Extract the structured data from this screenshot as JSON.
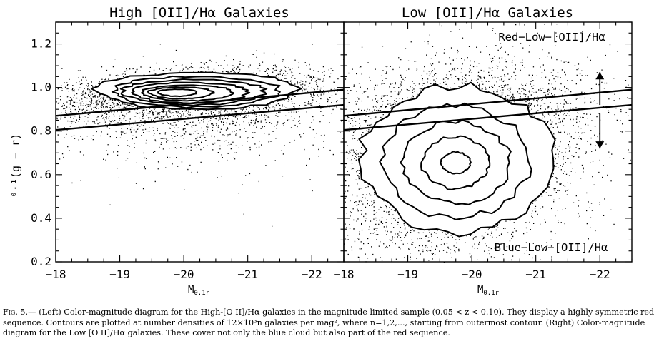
{
  "figure": {
    "ylabel": "⁰·¹(g − r)",
    "xlabel": "M",
    "xlabel_sub": "0.1r"
  },
  "chart_data": [
    {
      "type": "scatter",
      "title": "High [OII]/Hα Galaxies",
      "xlabel": "M0.1r",
      "ylabel": "0.1(g−r)",
      "xlim": [
        -18,
        -22.5
      ],
      "ylim": [
        0.2,
        1.3
      ],
      "x_ticks": [
        -18,
        -19,
        -20,
        -21,
        -22
      ],
      "y_ticks": [
        0.2,
        0.4,
        0.6,
        0.8,
        1.0,
        1.2
      ],
      "x_tick_labels": [
        "−18",
        "−19",
        "−20",
        "−21",
        "−22"
      ],
      "y_tick_labels": [
        "0.2",
        "0.4",
        "0.6",
        "0.8",
        "1.0",
        "1.2"
      ],
      "grid": false,
      "annotations": [],
      "divider_lines": [
        {
          "x": [
            -18,
            -22.5
          ],
          "y": [
            0.87,
            0.99
          ]
        },
        {
          "x": [
            -18,
            -22.5
          ],
          "y": [
            0.805,
            0.92
          ]
        }
      ],
      "contours": [
        {
          "level": 1,
          "center": [
            -20.2,
            0.983
          ],
          "half_width": 1.55,
          "half_height": 0.085
        },
        {
          "level": 2,
          "center": [
            -20.2,
            0.98
          ],
          "half_width": 1.3,
          "half_height": 0.07
        },
        {
          "level": 3,
          "center": [
            -20.15,
            0.978
          ],
          "half_width": 1.1,
          "half_height": 0.058
        },
        {
          "level": 4,
          "center": [
            -20.1,
            0.976
          ],
          "half_width": 0.9,
          "half_height": 0.047
        },
        {
          "level": 5,
          "center": [
            -20.05,
            0.975
          ],
          "half_width": 0.7,
          "half_height": 0.036
        },
        {
          "level": 6,
          "center": [
            -19.95,
            0.975
          ],
          "half_width": 0.5,
          "half_height": 0.026
        },
        {
          "level": 7,
          "center": [
            -19.9,
            0.976
          ],
          "half_width": 0.3,
          "half_height": 0.016
        }
      ],
      "points": {
        "dist": "red-sequence",
        "n": 3400,
        "center": [
          -20.1,
          0.98
        ],
        "spread": [
          1.2,
          0.1
        ]
      }
    },
    {
      "type": "scatter",
      "title": "Low [OII]/Hα Galaxies",
      "xlabel": "M0.1r",
      "ylabel": "0.1(g−r)",
      "xlim": [
        -18,
        -22.5
      ],
      "ylim": [
        0.2,
        1.3
      ],
      "x_ticks": [
        -18,
        -19,
        -20,
        -21,
        -22
      ],
      "y_ticks": [
        0.2,
        0.4,
        0.6,
        0.8,
        1.0,
        1.2
      ],
      "x_tick_labels": [
        "−18",
        "−19",
        "−20",
        "−21",
        "−22"
      ],
      "grid": false,
      "annotations": [
        {
          "text": "Red−Low−[OII]/Hα",
          "x": -21.1,
          "y": 1.22
        },
        {
          "text": "Blue−Low−[OII]/Hα",
          "x": -21.2,
          "y": 0.25
        }
      ],
      "arrows": [
        {
          "x": -22.0,
          "y_from": 0.92,
          "y_to": 1.07
        },
        {
          "x": -22.0,
          "y_from": 0.88,
          "y_to": 0.72
        }
      ],
      "divider_lines": [
        {
          "x": [
            -18,
            -22.5
          ],
          "y": [
            0.87,
            0.99
          ]
        },
        {
          "x": [
            -18,
            -22.5
          ],
          "y": [
            0.805,
            0.92
          ]
        }
      ],
      "contours": [
        {
          "level": 1,
          "center": [
            -19.8,
            0.67
          ],
          "half_width": 1.45,
          "half_height": 0.34
        },
        {
          "level": 2,
          "center": [
            -19.75,
            0.66
          ],
          "half_width": 1.1,
          "half_height": 0.26
        },
        {
          "level": 3,
          "center": [
            -19.75,
            0.655
          ],
          "half_width": 0.8,
          "half_height": 0.19
        },
        {
          "level": 4,
          "center": [
            -19.75,
            0.655
          ],
          "half_width": 0.5,
          "half_height": 0.12
        },
        {
          "level": 5,
          "center": [
            -19.75,
            0.655
          ],
          "half_width": 0.22,
          "half_height": 0.05
        }
      ],
      "points": {
        "dist": "blue-cloud",
        "n": 5200,
        "center": [
          -19.8,
          0.66
        ],
        "spread": [
          1.1,
          0.22
        ]
      }
    }
  ],
  "caption": {
    "lead": "Fig. 5.—",
    "text": "(Left) Color-magnitude diagram for the High-[O II]/Hα galaxies in the magnitude limited sample (0.05 < z < 0.10). They display a highly symmetric red sequence. Contours are plotted at number densities of 12×10³n galaxies per mag², where n=1,2,..., starting from outermost contour. (Right) Color-magnitude diagram for the Low [O II]/Hα galaxies. These cover not only the blue cloud but also part of the red sequence."
  }
}
